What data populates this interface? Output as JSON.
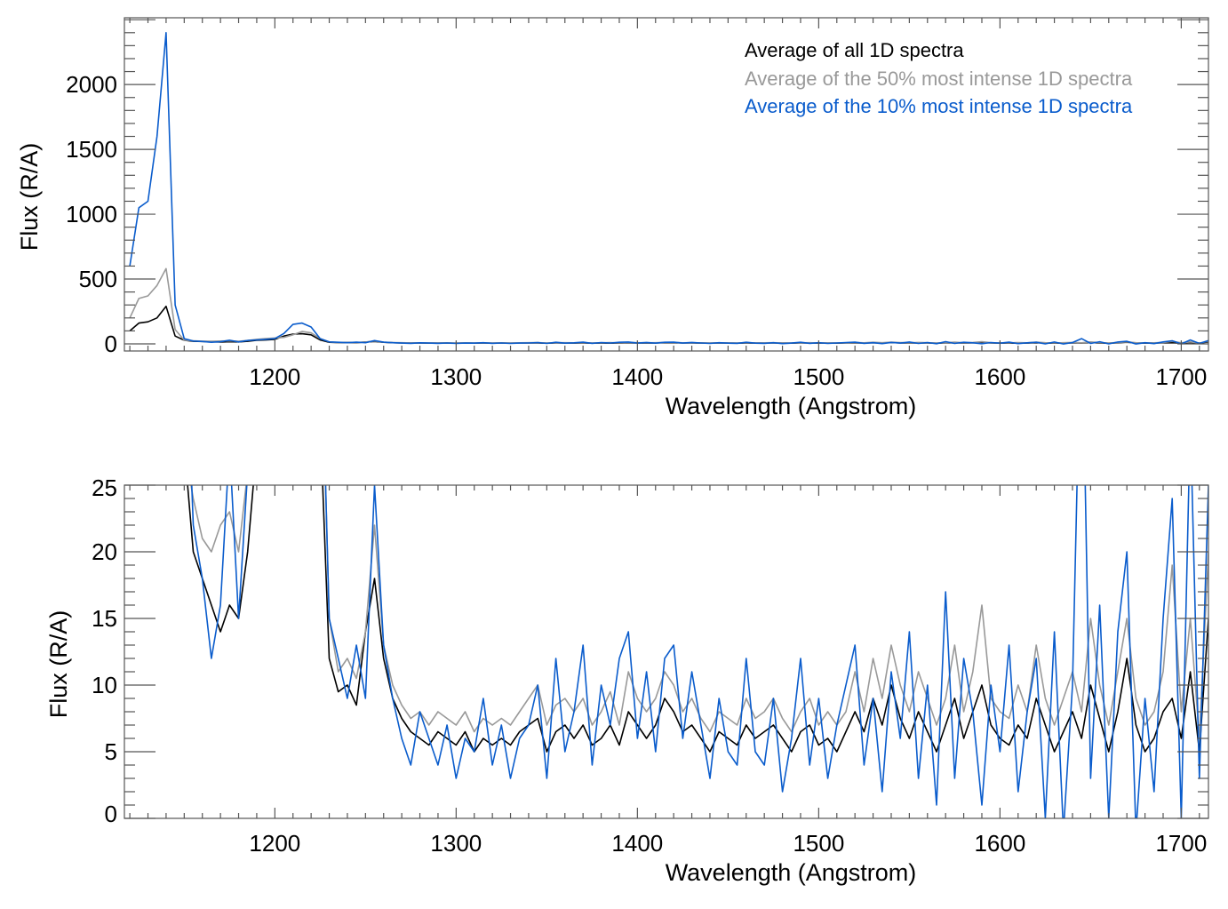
{
  "chart_data": [
    {
      "type": "line",
      "panel": "top",
      "xlabel": "Wavelength (Angstrom)",
      "ylabel": "Flux (R/A)",
      "xlim": [
        1117,
        1715
      ],
      "ylim": [
        -55,
        2515
      ],
      "xticks": [
        1200,
        1300,
        1400,
        1500,
        1600,
        1700
      ],
      "xtick_labels": [
        "1200",
        "1300",
        "1400",
        "1500",
        "1600",
        "1700"
      ],
      "x_minor_step": 10,
      "yticks": [
        0,
        500,
        1000,
        1500,
        2000
      ],
      "ytick_labels": [
        "0",
        "500",
        "1000",
        "1500",
        "2000"
      ],
      "y_minor_step": 100,
      "legend_position": "top-right",
      "legend": [
        "Average of all 1D spectra",
        "Average of the 50% most intense 1D spectra",
        "Average of the 10% most intense 1D spectra"
      ]
    },
    {
      "type": "line",
      "panel": "bottom",
      "xlabel": "Wavelength (Angstrom)",
      "ylabel": "Flux (R/A)",
      "xlim": [
        1117,
        1715
      ],
      "ylim": [
        0,
        25
      ],
      "xticks": [
        1200,
        1300,
        1400,
        1500,
        1600,
        1700
      ],
      "xtick_labels": [
        "1200",
        "1300",
        "1400",
        "1500",
        "1600",
        "1700"
      ],
      "x_minor_step": 10,
      "yticks": [
        0,
        5,
        10,
        15,
        20,
        25
      ],
      "ytick_labels": [
        "0",
        "5",
        "10",
        "15",
        "20",
        "25"
      ],
      "y_minor_step": 1
    }
  ],
  "series": {
    "x_start": 1120,
    "x_step": 5,
    "list": [
      {
        "name": "Average of all 1D spectra",
        "color": "#000000",
        "values": [
          100,
          160,
          170,
          200,
          290,
          60,
          28,
          20,
          18,
          16,
          14,
          16,
          15,
          20,
          28,
          30,
          35,
          60,
          75,
          78,
          70,
          30,
          12,
          9.5,
          10,
          8.5,
          14,
          18,
          12,
          9,
          7.5,
          6.5,
          6,
          5.5,
          6.5,
          6,
          5.5,
          6.5,
          5,
          6,
          5.5,
          6,
          5.5,
          6.5,
          7,
          7.5,
          5,
          6.5,
          7,
          6,
          7,
          5.5,
          6,
          7,
          5.5,
          8,
          7,
          6,
          7,
          9,
          8,
          6.5,
          7,
          6,
          5,
          6.5,
          6,
          5.5,
          7,
          6,
          6.5,
          7,
          6,
          5,
          6.5,
          7,
          5.5,
          6,
          5,
          6.5,
          8,
          6.5,
          9,
          7,
          10,
          7.5,
          6,
          8,
          6.5,
          5,
          7,
          9,
          6,
          8,
          10,
          7,
          6,
          5.5,
          7,
          6,
          9,
          7,
          5,
          6.5,
          8,
          6,
          10,
          7.5,
          5,
          8,
          12,
          7,
          5,
          6,
          8,
          9,
          6,
          11,
          5,
          15
        ]
      },
      {
        "name": "Average of the 50% most intense 1D spectra",
        "color": "#999999",
        "values": [
          200,
          350,
          370,
          450,
          580,
          110,
          28,
          24,
          21,
          20,
          22,
          23,
          20,
          26,
          35,
          40,
          45,
          50,
          70,
          95,
          85,
          40,
          15,
          11,
          12,
          10.5,
          14,
          22,
          13,
          10,
          8.5,
          7.5,
          8,
          7,
          8,
          7.5,
          7,
          8,
          6.5,
          7.5,
          7,
          7.5,
          7,
          8,
          9,
          10,
          7,
          8.5,
          9,
          8,
          9,
          7,
          8,
          9.5,
          7,
          11,
          9,
          8,
          9,
          11,
          10,
          8,
          9,
          7.5,
          6.5,
          8,
          7.5,
          7,
          9,
          7.5,
          8,
          9,
          7.5,
          6.5,
          8,
          9,
          7,
          8,
          7,
          8,
          11,
          8,
          12,
          9,
          13,
          10,
          8,
          11,
          9,
          7,
          9,
          13,
          8,
          11,
          16,
          9,
          8,
          7.5,
          10,
          8,
          13,
          9,
          7,
          9,
          11,
          8,
          15,
          10,
          7,
          11,
          15,
          9,
          7,
          8,
          11,
          19,
          8,
          15,
          6,
          20
        ]
      },
      {
        "name": "Average of the 10% most intense 1D spectra",
        "color": "#0a5ccc",
        "values": [
          600,
          1050,
          1100,
          1600,
          2400,
          300,
          40,
          22,
          18,
          12,
          16,
          28,
          15,
          26,
          30,
          35,
          40,
          80,
          150,
          160,
          130,
          40,
          15,
          12,
          9,
          13,
          9,
          25,
          13,
          9,
          6,
          4,
          8,
          6,
          4,
          7,
          3,
          6,
          5,
          9,
          4,
          7,
          3,
          6,
          7,
          10,
          3,
          12,
          5,
          8,
          13,
          4,
          10,
          7,
          12,
          14,
          6,
          11,
          5,
          12,
          13,
          6,
          11,
          7,
          3,
          9,
          5,
          4,
          12,
          5,
          4,
          9,
          2,
          6,
          12,
          4,
          9,
          3,
          7,
          10,
          13,
          4,
          9,
          2,
          11,
          6,
          14,
          3,
          10,
          1,
          17,
          3,
          12,
          8,
          1,
          10,
          5,
          13,
          2,
          8,
          12,
          0,
          14,
          -1,
          10,
          40,
          3,
          16,
          0,
          14,
          20,
          -1,
          9,
          2,
          15,
          24,
          0,
          30,
          3,
          25
        ]
      }
    ]
  }
}
